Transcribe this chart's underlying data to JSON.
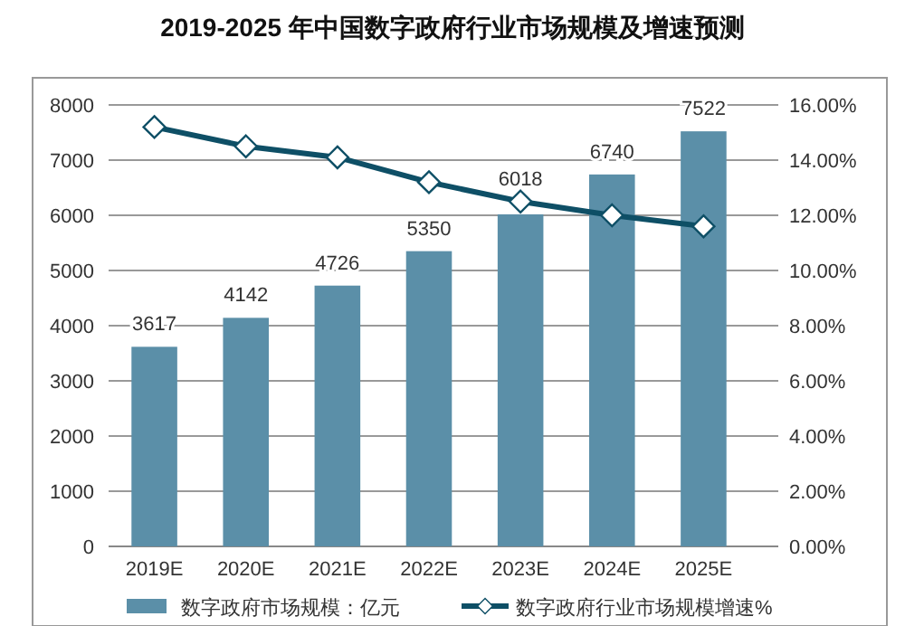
{
  "chart_data": {
    "type": "bar",
    "title": "2019-2025 年中国数字政府行业市场规模及增速预测",
    "categories": [
      "2019E",
      "2020E",
      "2021E",
      "2022E",
      "2023E",
      "2024E",
      "2025E"
    ],
    "series": [
      {
        "name": "数字政府市场规模：亿元",
        "color": "#5b8fa8",
        "values": [
          3617,
          4142,
          4726,
          5350,
          6018,
          6740,
          7522
        ]
      },
      {
        "name": "数字政府行业市场规模增速%",
        "type": "line",
        "axis": "y2",
        "color": "#0e4f66",
        "marker": "diamond",
        "values": [
          15.2,
          14.5,
          14.1,
          13.2,
          12.5,
          12.0,
          11.6
        ]
      }
    ],
    "ylim": [
      0,
      8000
    ],
    "yticks": [
      0,
      1000,
      2000,
      3000,
      4000,
      5000,
      6000,
      7000,
      8000
    ],
    "y2lim": [
      0,
      16
    ],
    "y2ticks": [
      {
        "value": 0,
        "label": "0.00%"
      },
      {
        "value": 2,
        "label": "2.00%"
      },
      {
        "value": 4,
        "label": "4.00%"
      },
      {
        "value": 6,
        "label": "6.00%"
      },
      {
        "value": 8,
        "label": "8.00%"
      },
      {
        "value": 10,
        "label": "10.00%"
      },
      {
        "value": 12,
        "label": "12.00%"
      },
      {
        "value": 14,
        "label": "14.00%"
      },
      {
        "value": 16,
        "label": "16.00%"
      }
    ],
    "grid": "y",
    "legend": "bottom",
    "value_labels": [
      "3617",
      "4142",
      "4726",
      "5350",
      "6018",
      "6740",
      "7522"
    ]
  }
}
